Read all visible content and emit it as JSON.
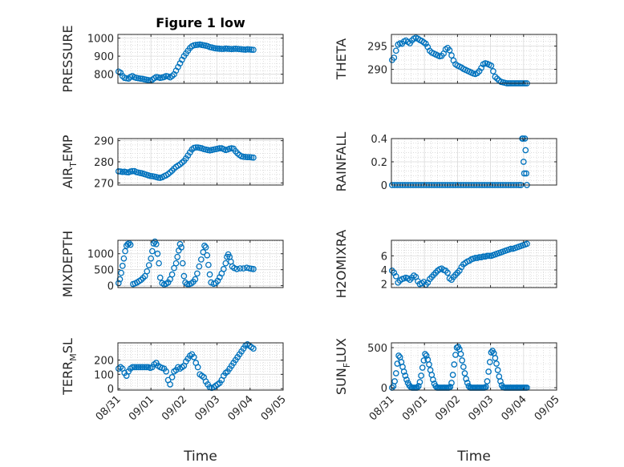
{
  "figure_title": "Figure 1 low",
  "marker_color": "#0072bd",
  "x_tick_labels": [
    "08/31",
    "09/01",
    "09/02",
    "09/03",
    "09/04",
    "09/05"
  ],
  "chart_data": [
    {
      "type": "scatter",
      "title": "Figure 1 low",
      "ylabel": "PRESSURE",
      "ylim": [
        750,
        1020
      ],
      "yticks": [
        800,
        900,
        1000
      ],
      "xlabel": "",
      "xlim": [
        0,
        5
      ],
      "grid": true,
      "x": [
        0.02,
        0.08,
        0.14,
        0.2,
        0.26,
        0.32,
        0.38,
        0.44,
        0.5,
        0.56,
        0.62,
        0.68,
        0.74,
        0.8,
        0.86,
        0.92,
        0.98,
        1.04,
        1.1,
        1.16,
        1.22,
        1.28,
        1.34,
        1.4,
        1.46,
        1.52,
        1.58,
        1.64,
        1.7,
        1.76,
        1.82,
        1.88,
        1.94,
        2.0,
        2.06,
        2.12,
        2.18,
        2.24,
        2.3,
        2.36,
        2.42,
        2.48,
        2.54,
        2.6,
        2.66,
        2.72,
        2.78,
        2.84,
        2.9,
        2.96,
        3.02,
        3.08,
        3.14,
        3.2,
        3.26,
        3.32,
        3.38,
        3.44,
        3.5,
        3.56,
        3.62,
        3.68,
        3.74,
        3.8,
        3.86,
        3.92,
        3.98,
        4.04,
        4.1
      ],
      "y": [
        815,
        808,
        790,
        780,
        778,
        776,
        785,
        790,
        783,
        780,
        778,
        776,
        775,
        772,
        770,
        768,
        766,
        770,
        778,
        785,
        783,
        780,
        782,
        785,
        790,
        788,
        783,
        790,
        800,
        820,
        840,
        860,
        880,
        900,
        915,
        930,
        945,
        955,
        960,
        962,
        963,
        965,
        962,
        960,
        958,
        955,
        950,
        948,
        945,
        943,
        942,
        941,
        940,
        940,
        942,
        941,
        940,
        939,
        940,
        941,
        940,
        939,
        938,
        937,
        936,
        938,
        937,
        936,
        935
      ]
    },
    {
      "type": "scatter",
      "title": "",
      "ylabel": "THETA",
      "ylim": [
        287,
        297.5
      ],
      "yticks": [
        290,
        295
      ],
      "xlabel": "",
      "xlim": [
        0,
        5
      ],
      "grid": true,
      "x": [
        0.02,
        0.08,
        0.14,
        0.2,
        0.26,
        0.32,
        0.38,
        0.44,
        0.5,
        0.56,
        0.62,
        0.68,
        0.74,
        0.8,
        0.86,
        0.92,
        0.98,
        1.04,
        1.1,
        1.16,
        1.22,
        1.28,
        1.34,
        1.4,
        1.46,
        1.52,
        1.58,
        1.64,
        1.7,
        1.76,
        1.82,
        1.88,
        1.94,
        2.0,
        2.06,
        2.12,
        2.18,
        2.24,
        2.3,
        2.36,
        2.42,
        2.48,
        2.54,
        2.6,
        2.66,
        2.72,
        2.78,
        2.84,
        2.9,
        2.96,
        3.02,
        3.08,
        3.14,
        3.2,
        3.26,
        3.32,
        3.38,
        3.44,
        3.5,
        3.56,
        3.62,
        3.68,
        3.74,
        3.8,
        3.86,
        3.92,
        3.98,
        4.04,
        4.1
      ],
      "y": [
        292,
        292.5,
        294,
        295.3,
        295.6,
        295.5,
        296,
        296.2,
        295.9,
        295.6,
        296.2,
        296.6,
        296.8,
        296.6,
        296.3,
        296.1,
        295.8,
        295.5,
        294.8,
        294.0,
        293.6,
        293.4,
        293.2,
        293.0,
        292.8,
        292.9,
        293.4,
        294.3,
        294.6,
        294.1,
        293.0,
        291.9,
        291.1,
        290.8,
        290.6,
        290.4,
        290.1,
        289.9,
        289.7,
        289.5,
        289.3,
        289.1,
        289.0,
        289.2,
        289.6,
        290.3,
        291.1,
        291.3,
        291.2,
        291.0,
        290.8,
        289.6,
        288.4,
        288.0,
        287.6,
        287.3,
        287.2,
        287.1,
        287.0,
        287.0,
        287.0,
        287.0,
        287.0,
        287.0,
        287.0,
        287.0,
        287.0,
        287.0,
        287.0
      ]
    },
    {
      "type": "scatter",
      "title": "",
      "ylabel": "AIR_TEMP",
      "ylim": [
        269,
        291
      ],
      "yticks": [
        270,
        280,
        290
      ],
      "xlabel": "",
      "xlim": [
        0,
        5
      ],
      "grid": true,
      "x": [
        0.02,
        0.08,
        0.14,
        0.2,
        0.26,
        0.32,
        0.38,
        0.44,
        0.5,
        0.56,
        0.62,
        0.68,
        0.74,
        0.8,
        0.86,
        0.92,
        0.98,
        1.04,
        1.1,
        1.16,
        1.22,
        1.28,
        1.34,
        1.4,
        1.46,
        1.52,
        1.58,
        1.64,
        1.7,
        1.76,
        1.82,
        1.88,
        1.94,
        2.0,
        2.06,
        2.12,
        2.18,
        2.24,
        2.3,
        2.36,
        2.42,
        2.48,
        2.54,
        2.6,
        2.66,
        2.72,
        2.78,
        2.84,
        2.9,
        2.96,
        3.02,
        3.08,
        3.14,
        3.2,
        3.26,
        3.32,
        3.38,
        3.44,
        3.5,
        3.56,
        3.62,
        3.68,
        3.74,
        3.8,
        3.86,
        3.92,
        3.98,
        4.04,
        4.1
      ],
      "y": [
        275.5,
        275.4,
        275.2,
        275.3,
        275.1,
        275.0,
        275.4,
        275.6,
        275.6,
        275.1,
        274.9,
        274.7,
        274.5,
        274.2,
        273.9,
        273.6,
        273.3,
        273.2,
        273.0,
        272.8,
        272.5,
        272.4,
        272.7,
        273.2,
        273.6,
        274.2,
        275.0,
        275.8,
        276.8,
        277.6,
        278.2,
        278.8,
        279.6,
        280.4,
        281.6,
        283.0,
        284.4,
        285.8,
        286.6,
        286.8,
        286.8,
        286.6,
        286.4,
        286.0,
        285.8,
        285.6,
        285.4,
        285.6,
        285.8,
        286.0,
        286.2,
        286.4,
        286.4,
        286.0,
        285.6,
        285.8,
        286.2,
        286.4,
        286.2,
        285.0,
        284.0,
        283.2,
        282.6,
        282.4,
        282.3,
        282.2,
        282.2,
        282.1,
        282.0
      ]
    },
    {
      "type": "scatter",
      "title": "",
      "ylabel": "RAINFALL",
      "ylim": [
        0,
        0.4
      ],
      "yticks": [
        0,
        0.2,
        0.4
      ],
      "xlabel": "",
      "xlim": [
        0,
        5
      ],
      "grid": true,
      "x": [
        0.02,
        0.1,
        0.18,
        0.26,
        0.34,
        0.42,
        0.5,
        0.58,
        0.66,
        0.74,
        0.82,
        0.9,
        0.98,
        1.06,
        1.14,
        1.22,
        1.3,
        1.38,
        1.46,
        1.54,
        1.62,
        1.7,
        1.78,
        1.86,
        1.94,
        2.02,
        2.1,
        2.18,
        2.26,
        2.34,
        2.42,
        2.5,
        2.58,
        2.66,
        2.74,
        2.82,
        2.9,
        2.98,
        3.06,
        3.14,
        3.22,
        3.3,
        3.38,
        3.46,
        3.54,
        3.62,
        3.7,
        3.78,
        3.86,
        3.92,
        3.96,
        3.98,
        4.0,
        4.02,
        4.04,
        4.06,
        4.08,
        4.1
      ],
      "y": [
        0,
        0,
        0,
        0,
        0,
        0,
        0,
        0,
        0,
        0,
        0,
        0,
        0,
        0,
        0,
        0,
        0,
        0,
        0,
        0,
        0,
        0,
        0,
        0,
        0,
        0,
        0,
        0,
        0,
        0,
        0,
        0,
        0,
        0,
        0,
        0,
        0,
        0,
        0,
        0,
        0,
        0,
        0,
        0,
        0,
        0,
        0,
        0,
        0,
        0,
        0.4,
        0.4,
        0.2,
        0.1,
        0.4,
        0.3,
        0.1,
        0
      ]
    },
    {
      "type": "scatter",
      "title": "",
      "ylabel": "MIXDEPTH",
      "ylim": [
        -60,
        1420
      ],
      "yticks": [
        0,
        500,
        1000
      ],
      "xlabel": "",
      "xlim": [
        0,
        5
      ],
      "grid": true,
      "x": [
        0.02,
        0.06,
        0.1,
        0.14,
        0.18,
        0.22,
        0.26,
        0.3,
        0.34,
        0.38,
        0.46,
        0.52,
        0.58,
        0.64,
        0.7,
        0.76,
        0.82,
        0.88,
        0.94,
        1.0,
        1.04,
        1.08,
        1.12,
        1.16,
        1.2,
        1.24,
        1.28,
        1.34,
        1.4,
        1.46,
        1.52,
        1.58,
        1.64,
        1.7,
        1.76,
        1.8,
        1.84,
        1.88,
        1.92,
        1.96,
        2.0,
        2.04,
        2.1,
        2.16,
        2.22,
        2.28,
        2.34,
        2.4,
        2.46,
        2.52,
        2.58,
        2.62,
        2.66,
        2.7,
        2.74,
        2.78,
        2.82,
        2.9,
        2.96,
        3.02,
        3.08,
        3.14,
        3.2,
        3.26,
        3.3,
        3.34,
        3.38,
        3.42,
        3.46,
        3.52,
        3.6,
        3.7,
        3.8,
        3.9,
        3.98,
        4.04,
        4.1
      ],
      "y": [
        80,
        200,
        400,
        620,
        850,
        1080,
        1250,
        1300,
        1330,
        1280,
        50,
        70,
        100,
        140,
        180,
        240,
        300,
        450,
        640,
        850,
        1080,
        1320,
        1380,
        1300,
        1000,
        700,
        250,
        80,
        40,
        60,
        100,
        200,
        350,
        550,
        700,
        900,
        1100,
        1300,
        1200,
        700,
        300,
        100,
        50,
        50,
        70,
        120,
        200,
        380,
        600,
        820,
        1050,
        1250,
        1200,
        950,
        650,
        350,
        100,
        60,
        80,
        150,
        260,
        380,
        520,
        700,
        900,
        980,
        900,
        750,
        600,
        550,
        520,
        540,
        540,
        560,
        540,
        530,
        520
      ]
    },
    {
      "type": "scatter",
      "title": "",
      "ylabel": "H2OMIXRA",
      "ylim": [
        1.5,
        8.2
      ],
      "yticks": [
        2,
        4,
        6
      ],
      "xlabel": "",
      "xlim": [
        0,
        5
      ],
      "grid": true,
      "x": [
        0.02,
        0.08,
        0.14,
        0.2,
        0.26,
        0.32,
        0.38,
        0.44,
        0.5,
        0.56,
        0.62,
        0.68,
        0.74,
        0.8,
        0.86,
        0.92,
        0.98,
        1.04,
        1.1,
        1.16,
        1.22,
        1.28,
        1.34,
        1.4,
        1.46,
        1.52,
        1.58,
        1.64,
        1.7,
        1.76,
        1.82,
        1.88,
        1.94,
        2.0,
        2.06,
        2.12,
        2.18,
        2.24,
        2.3,
        2.36,
        2.42,
        2.48,
        2.54,
        2.6,
        2.66,
        2.72,
        2.78,
        2.84,
        2.9,
        2.96,
        3.02,
        3.08,
        3.14,
        3.2,
        3.26,
        3.32,
        3.38,
        3.44,
        3.5,
        3.56,
        3.62,
        3.68,
        3.74,
        3.8,
        3.86,
        3.92,
        3.98,
        4.04,
        4.1
      ],
      "y": [
        3.9,
        3.6,
        3.1,
        2.2,
        2.5,
        2.7,
        2.8,
        2.9,
        2.8,
        2.6,
        2.9,
        3.2,
        3.0,
        2.4,
        2.0,
        2.1,
        2.3,
        1.9,
        2.2,
        2.7,
        3.0,
        3.3,
        3.6,
        3.9,
        4.1,
        4.2,
        4.0,
        3.9,
        3.6,
        2.8,
        2.6,
        3.0,
        3.3,
        3.6,
        3.9,
        4.4,
        4.8,
        5.0,
        5.2,
        5.3,
        5.5,
        5.6,
        5.7,
        5.7,
        5.8,
        5.8,
        5.9,
        5.9,
        6.0,
        6.0,
        6.0,
        6.1,
        6.2,
        6.3,
        6.4,
        6.5,
        6.6,
        6.7,
        6.8,
        6.9,
        7.0,
        7.0,
        7.1,
        7.2,
        7.3,
        7.4,
        7.5,
        7.6,
        7.7
      ]
    },
    {
      "type": "scatter",
      "title": "",
      "ylabel": "TERR_MSL",
      "ylim": [
        -10,
        320
      ],
      "yticks": [
        0,
        100,
        200
      ],
      "xlabel": "Time",
      "xlim": [
        0,
        5
      ],
      "grid": true,
      "x": [
        0.02,
        0.08,
        0.14,
        0.2,
        0.26,
        0.32,
        0.38,
        0.44,
        0.5,
        0.56,
        0.62,
        0.68,
        0.74,
        0.8,
        0.86,
        0.92,
        0.98,
        1.04,
        1.1,
        1.16,
        1.22,
        1.28,
        1.34,
        1.4,
        1.46,
        1.52,
        1.58,
        1.64,
        1.7,
        1.76,
        1.82,
        1.88,
        1.94,
        2.0,
        2.06,
        2.12,
        2.18,
        2.24,
        2.3,
        2.36,
        2.42,
        2.48,
        2.54,
        2.6,
        2.66,
        2.72,
        2.78,
        2.84,
        2.9,
        2.96,
        3.02,
        3.08,
        3.14,
        3.2,
        3.26,
        3.32,
        3.38,
        3.44,
        3.5,
        3.56,
        3.62,
        3.68,
        3.74,
        3.8,
        3.86,
        3.92,
        3.98,
        4.04,
        4.1
      ],
      "y": [
        140,
        150,
        140,
        110,
        90,
        120,
        140,
        150,
        150,
        150,
        150,
        150,
        150,
        150,
        150,
        150,
        145,
        150,
        170,
        180,
        160,
        150,
        145,
        140,
        120,
        60,
        30,
        80,
        120,
        130,
        150,
        140,
        150,
        160,
        190,
        210,
        230,
        240,
        220,
        180,
        150,
        100,
        90,
        80,
        50,
        30,
        10,
        5,
        10,
        20,
        30,
        40,
        60,
        90,
        110,
        120,
        140,
        160,
        180,
        200,
        220,
        240,
        260,
        280,
        300,
        310,
        300,
        290,
        280
      ]
    },
    {
      "type": "scatter",
      "title": "",
      "ylabel": "SUN_FLUX",
      "ylim": [
        -30,
        560
      ],
      "yticks": [
        0,
        500
      ],
      "xlabel": "Time",
      "xlim": [
        0,
        5
      ],
      "grid": true,
      "x": [
        0.02,
        0.06,
        0.1,
        0.14,
        0.18,
        0.22,
        0.26,
        0.3,
        0.34,
        0.38,
        0.42,
        0.46,
        0.5,
        0.54,
        0.58,
        0.62,
        0.66,
        0.7,
        0.74,
        0.78,
        0.82,
        0.86,
        0.9,
        0.94,
        0.98,
        1.02,
        1.06,
        1.1,
        1.14,
        1.18,
        1.22,
        1.26,
        1.3,
        1.34,
        1.38,
        1.42,
        1.46,
        1.5,
        1.54,
        1.58,
        1.62,
        1.66,
        1.7,
        1.74,
        1.78,
        1.82,
        1.86,
        1.9,
        1.94,
        1.98,
        2.02,
        2.06,
        2.1,
        2.14,
        2.18,
        2.22,
        2.26,
        2.3,
        2.34,
        2.38,
        2.42,
        2.46,
        2.5,
        2.54,
        2.58,
        2.62,
        2.66,
        2.7,
        2.74,
        2.78,
        2.82,
        2.86,
        2.9,
        2.94,
        2.98,
        3.02,
        3.06,
        3.1,
        3.14,
        3.18,
        3.22,
        3.26,
        3.3,
        3.34,
        3.38,
        3.42,
        3.46,
        3.5,
        3.54,
        3.58,
        3.62,
        3.66,
        3.7,
        3.74,
        3.78,
        3.82,
        3.86,
        3.9,
        3.94,
        3.98,
        4.02,
        4.06,
        4.1
      ],
      "y": [
        0,
        20,
        80,
        180,
        300,
        400,
        380,
        320,
        260,
        200,
        150,
        100,
        60,
        30,
        10,
        0,
        0,
        0,
        0,
        0,
        20,
        70,
        150,
        250,
        340,
        420,
        400,
        350,
        290,
        220,
        160,
        100,
        50,
        20,
        0,
        0,
        0,
        0,
        0,
        0,
        0,
        0,
        0,
        0,
        10,
        60,
        160,
        290,
        410,
        500,
        510,
        480,
        420,
        340,
        260,
        180,
        110,
        60,
        20,
        0,
        0,
        0,
        0,
        0,
        0,
        0,
        0,
        0,
        0,
        0,
        0,
        10,
        80,
        200,
        320,
        440,
        460,
        430,
        370,
        300,
        220,
        140,
        80,
        30,
        5,
        0,
        0,
        0,
        0,
        0,
        0,
        0,
        0,
        0,
        0,
        0,
        0,
        0,
        0,
        0,
        0,
        0,
        0
      ]
    }
  ]
}
